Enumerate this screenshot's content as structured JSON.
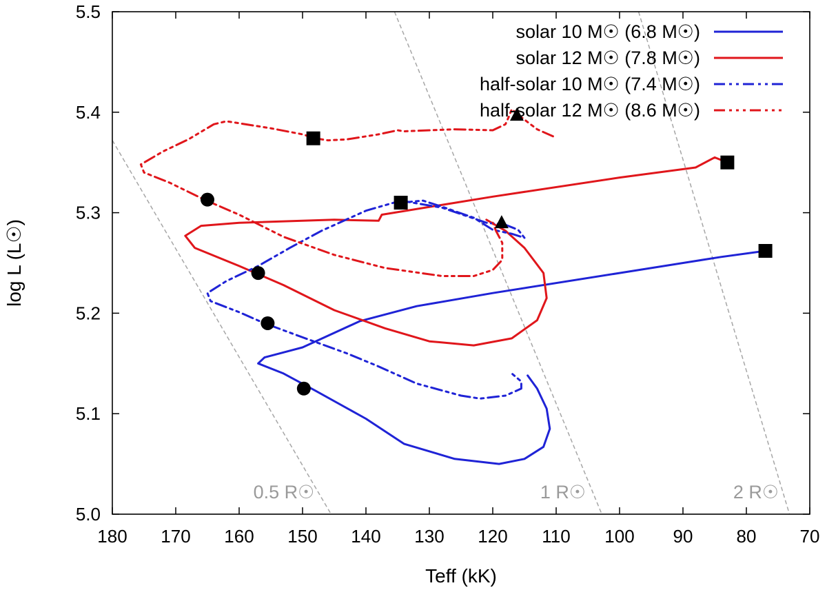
{
  "chart_data": {
    "type": "line",
    "xlabel": "Teff (kK)",
    "ylabel": "log L (L☉)",
    "xlim": [
      180,
      70
    ],
    "ylim": [
      5.0,
      5.5
    ],
    "xticks": [
      180,
      170,
      160,
      150,
      140,
      130,
      120,
      110,
      100,
      90,
      80,
      70
    ],
    "yticks": [
      5.0,
      5.1,
      5.2,
      5.3,
      5.4,
      5.5
    ],
    "ytick_labels": [
      "5.0",
      "5.1",
      "5.2",
      "5.3",
      "5.4",
      "5.5"
    ],
    "legend_position": "top-right",
    "series": [
      {
        "name": "solar 10 M☉ (6.8 M☉)",
        "color": "#1f23d6",
        "dash": "solid",
        "points": [
          [
            77.0,
            5.262
          ],
          [
            84,
            5.256
          ],
          [
            100,
            5.24
          ],
          [
            120,
            5.22
          ],
          [
            132,
            5.207
          ],
          [
            141,
            5.192
          ],
          [
            150,
            5.166
          ],
          [
            156,
            5.156
          ],
          [
            157,
            5.15
          ],
          [
            153,
            5.14
          ],
          [
            148,
            5.123
          ],
          [
            140,
            5.095
          ],
          [
            134,
            5.07
          ],
          [
            126,
            5.055
          ],
          [
            119,
            5.05
          ],
          [
            115,
            5.055
          ],
          [
            112,
            5.067
          ],
          [
            111,
            5.085
          ],
          [
            111.5,
            5.105
          ],
          [
            113,
            5.125
          ],
          [
            114.5,
            5.138
          ]
        ]
      },
      {
        "name": "solar 12 M☉ (7.8 M☉)",
        "color": "#e0161b",
        "dash": "solid",
        "points": [
          [
            83.0,
            5.35
          ],
          [
            85,
            5.355
          ],
          [
            88,
            5.345
          ],
          [
            100,
            5.335
          ],
          [
            120,
            5.316
          ],
          [
            137.5,
            5.298
          ],
          [
            138,
            5.292
          ],
          [
            145,
            5.293
          ],
          [
            160,
            5.29
          ],
          [
            166,
            5.287
          ],
          [
            168.5,
            5.277
          ],
          [
            167,
            5.265
          ],
          [
            160,
            5.247
          ],
          [
            153,
            5.228
          ],
          [
            145,
            5.203
          ],
          [
            137,
            5.185
          ],
          [
            130,
            5.172
          ],
          [
            123,
            5.168
          ],
          [
            117,
            5.175
          ],
          [
            113,
            5.193
          ],
          [
            111.5,
            5.215
          ],
          [
            112,
            5.24
          ],
          [
            115,
            5.265
          ],
          [
            118,
            5.282
          ],
          [
            121,
            5.293
          ]
        ]
      },
      {
        "name": "half-solar 10 M☉ (7.4 M☉)",
        "color": "#1f23d6",
        "dash": "16 6 4 6 4 6",
        "points": [
          [
            134.5,
            5.31
          ],
          [
            131,
            5.312
          ],
          [
            128,
            5.306
          ],
          [
            123,
            5.295
          ],
          [
            120,
            5.283
          ],
          [
            117,
            5.279
          ],
          [
            115,
            5.275
          ],
          [
            116,
            5.283
          ],
          [
            118,
            5.288
          ],
          [
            121,
            5.29
          ],
          [
            128,
            5.305
          ],
          [
            134.5,
            5.312
          ],
          [
            140,
            5.302
          ],
          [
            147,
            5.282
          ],
          [
            152,
            5.265
          ],
          [
            157,
            5.247
          ],
          [
            162,
            5.232
          ],
          [
            165,
            5.22
          ],
          [
            164.5,
            5.212
          ],
          [
            160,
            5.201
          ],
          [
            156,
            5.19
          ],
          [
            150,
            5.176
          ],
          [
            143,
            5.16
          ],
          [
            138,
            5.147
          ],
          [
            132,
            5.13
          ],
          [
            125,
            5.118
          ],
          [
            122,
            5.115
          ],
          [
            118,
            5.118
          ],
          [
            115.5,
            5.125
          ],
          [
            115.5,
            5.132
          ],
          [
            117,
            5.14
          ]
        ]
      },
      {
        "name": "half-solar 12 M☉ (8.6 M☉)",
        "color": "#e0161b",
        "dash": "16 6 4 6 4 6 4 6",
        "points": [
          [
            110.5,
            5.376
          ],
          [
            113,
            5.383
          ],
          [
            115.5,
            5.395
          ],
          [
            117,
            5.403
          ],
          [
            117.5,
            5.395
          ],
          [
            118,
            5.388
          ],
          [
            120,
            5.382
          ],
          [
            126,
            5.383
          ],
          [
            134,
            5.381
          ],
          [
            135,
            5.382
          ],
          [
            138,
            5.378
          ],
          [
            143,
            5.373
          ],
          [
            146,
            5.372
          ],
          [
            148,
            5.374
          ],
          [
            150,
            5.378
          ],
          [
            155,
            5.384
          ],
          [
            162,
            5.391
          ],
          [
            164,
            5.388
          ],
          [
            168,
            5.373
          ],
          [
            172,
            5.361
          ],
          [
            175.5,
            5.348
          ],
          [
            175,
            5.34
          ],
          [
            171,
            5.33
          ],
          [
            165.5,
            5.313
          ],
          [
            160,
            5.298
          ],
          [
            153,
            5.276
          ],
          [
            145,
            5.258
          ],
          [
            137,
            5.245
          ],
          [
            128,
            5.237
          ],
          [
            123,
            5.237
          ],
          [
            120,
            5.243
          ],
          [
            118.5,
            5.253
          ],
          [
            118.5,
            5.27
          ],
          [
            119.5,
            5.282
          ],
          [
            120,
            5.29
          ]
        ]
      }
    ],
    "markers": {
      "squares": [
        [
          148.3,
          5.374
        ],
        [
          134.5,
          5.31
        ],
        [
          83.0,
          5.35
        ],
        [
          77.0,
          5.262
        ]
      ],
      "circles": [
        [
          165.0,
          5.313
        ],
        [
          157.0,
          5.24
        ],
        [
          155.5,
          5.19
        ],
        [
          149.8,
          5.125
        ]
      ],
      "triangles": [
        [
          116.2,
          5.397
        ],
        [
          118.6,
          5.29
        ]
      ]
    },
    "radius_lines": [
      {
        "label": "0.5 R☉",
        "points": [
          [
            180,
            5.372
          ],
          [
            145.5,
            5.0
          ]
        ]
      },
      {
        "label": "1 R☉",
        "points": [
          [
            135.5,
            5.5
          ],
          [
            102.8,
            5.0
          ]
        ]
      },
      {
        "label": "2 R☉",
        "points": [
          [
            97,
            5.5
          ],
          [
            73.2,
            5.0
          ]
        ]
      }
    ]
  }
}
